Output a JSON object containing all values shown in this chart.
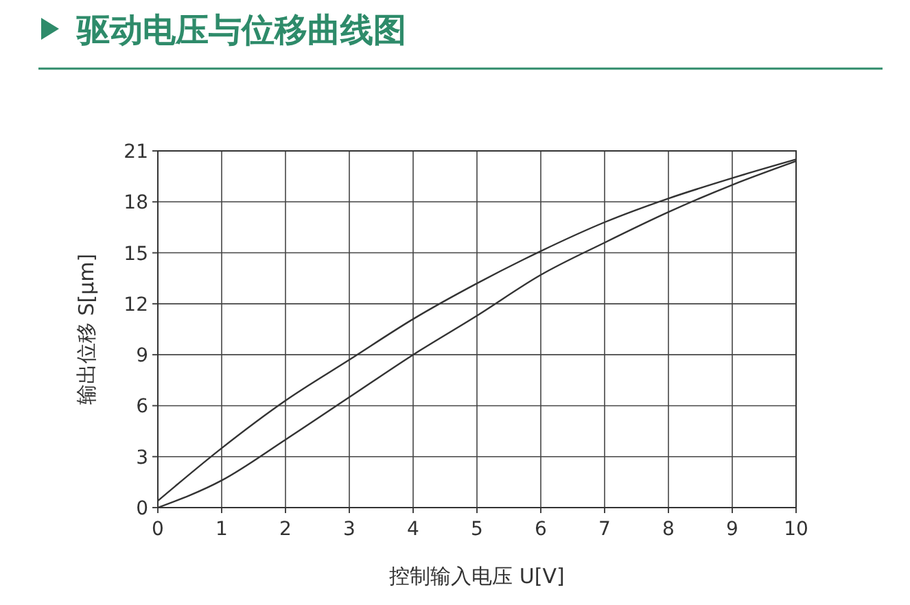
{
  "chart_data": {
    "type": "line",
    "title": "驱动电压与位移曲线图",
    "xlabel": "控制输入电压 U[V]",
    "ylabel": "输出位移 S[μm]",
    "x": [
      0,
      1,
      2,
      3,
      4,
      5,
      6,
      7,
      8,
      9,
      10
    ],
    "series": [
      {
        "color": "#333333",
        "values": [
          0.4,
          3.5,
          6.3,
          8.7,
          11.1,
          13.2,
          15.1,
          16.8,
          18.2,
          19.4,
          20.5
        ]
      },
      {
        "color": "#333333",
        "values": [
          0,
          1.6,
          4.0,
          6.5,
          9.0,
          11.3,
          13.7,
          15.6,
          17.4,
          19.0,
          20.4
        ]
      }
    ],
    "xlim": [
      0,
      10
    ],
    "ylim": [
      0,
      21
    ],
    "xticks": [
      0,
      1,
      2,
      3,
      4,
      5,
      6,
      7,
      8,
      9,
      10
    ],
    "yticks": [
      0,
      3,
      6,
      9,
      12,
      15,
      18,
      21
    ],
    "grid": true,
    "marker": "none",
    "line_style": "solid"
  }
}
